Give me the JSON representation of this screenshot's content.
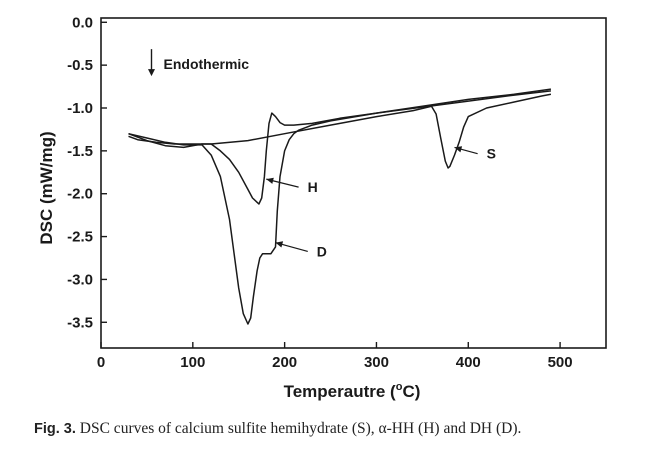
{
  "chart_data": {
    "type": "line",
    "xlabel": "Temperautre (°C)",
    "xlabel_main": "Temperautre (",
    "xlabel_unit_o": "o",
    "xlabel_unit_c": "C)",
    "ylabel": "DSC (mW/mg)",
    "xlim": [
      0,
      550
    ],
    "ylim": [
      -3.8,
      0.05
    ],
    "x_ticks": [
      0,
      100,
      200,
      300,
      400,
      500
    ],
    "y_ticks": [
      0.0,
      -0.5,
      -1.0,
      -1.5,
      -2.0,
      -2.5,
      -3.0,
      -3.5
    ],
    "x_tick_labels": [
      "0",
      "100",
      "200",
      "300",
      "400",
      "500"
    ],
    "y_tick_labels": [
      "0.0",
      "-0.5",
      "-1.0",
      "-1.5",
      "-2.0",
      "-2.5",
      "-3.0",
      "-3.5"
    ],
    "grid": false,
    "legend": "none",
    "annotations": [
      {
        "text": "Endothermic",
        "arrow": "down",
        "x": 55,
        "y": -0.5
      },
      {
        "text": "H",
        "x": 225,
        "y": -1.97,
        "points_to": [
          180,
          -1.83
        ]
      },
      {
        "text": "D",
        "x": 235,
        "y": -2.72,
        "points_to": [
          190,
          -2.57
        ]
      },
      {
        "text": "S",
        "x": 420,
        "y": -1.58,
        "points_to": [
          385,
          -1.46
        ]
      }
    ],
    "series": [
      {
        "label": "S",
        "x": [
          30,
          40,
          60,
          80,
          100,
          120,
          160,
          200,
          250,
          300,
          340,
          360,
          365,
          370,
          375,
          378,
          380,
          385,
          390,
          395,
          400,
          420,
          450,
          480,
          490
        ],
        "y": [
          -1.33,
          -1.37,
          -1.4,
          -1.42,
          -1.42,
          -1.42,
          -1.38,
          -1.3,
          -1.2,
          -1.1,
          -1.03,
          -0.98,
          -1.07,
          -1.35,
          -1.62,
          -1.7,
          -1.68,
          -1.55,
          -1.4,
          -1.22,
          -1.1,
          -1.0,
          -0.93,
          -0.86,
          -0.84
        ]
      },
      {
        "label": "H",
        "x": [
          30,
          50,
          70,
          90,
          110,
          120,
          130,
          140,
          150,
          160,
          165,
          170,
          172,
          175,
          178,
          180,
          183,
          186,
          190,
          195,
          200,
          210,
          230,
          260,
          300,
          350,
          400,
          450,
          490
        ],
        "y": [
          -1.3,
          -1.38,
          -1.44,
          -1.46,
          -1.42,
          -1.42,
          -1.5,
          -1.6,
          -1.75,
          -1.95,
          -2.05,
          -2.1,
          -2.12,
          -2.05,
          -1.8,
          -1.5,
          -1.18,
          -1.06,
          -1.1,
          -1.17,
          -1.2,
          -1.2,
          -1.18,
          -1.12,
          -1.06,
          -0.99,
          -0.92,
          -0.85,
          -0.8
        ]
      },
      {
        "label": "D",
        "x": [
          30,
          50,
          70,
          90,
          110,
          120,
          130,
          140,
          145,
          150,
          155,
          160,
          163,
          166,
          170,
          173,
          176,
          180,
          185,
          190,
          192,
          195,
          200,
          205,
          210,
          215,
          220,
          230,
          250,
          300,
          350,
          400,
          450,
          490
        ],
        "y": [
          -1.3,
          -1.35,
          -1.4,
          -1.43,
          -1.43,
          -1.55,
          -1.8,
          -2.3,
          -2.7,
          -3.1,
          -3.4,
          -3.52,
          -3.45,
          -3.2,
          -2.9,
          -2.75,
          -2.7,
          -2.7,
          -2.7,
          -2.62,
          -2.2,
          -1.8,
          -1.5,
          -1.37,
          -1.3,
          -1.26,
          -1.24,
          -1.2,
          -1.15,
          -1.06,
          -0.98,
          -0.9,
          -0.84,
          -0.78
        ]
      }
    ]
  },
  "caption": {
    "label": "Fig. 3.",
    "text": "DSC curves of calcium sulfite hemihydrate (S), α-HH (H) and DH (D)."
  }
}
